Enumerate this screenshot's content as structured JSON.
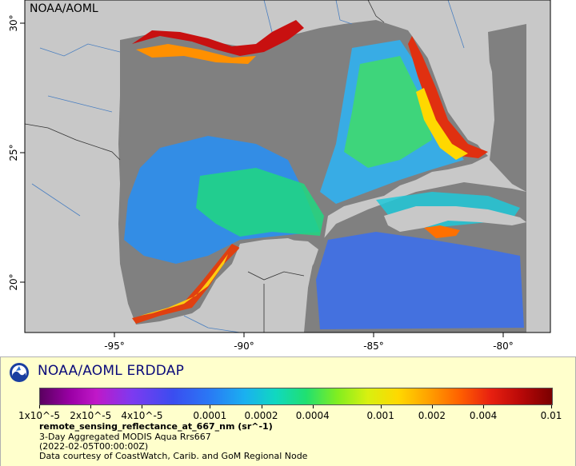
{
  "map": {
    "credit": "NOAA/AOML",
    "lon_ticks": [
      {
        "value": -95,
        "label": "-95°"
      },
      {
        "value": -90,
        "label": "-90°"
      },
      {
        "value": -85,
        "label": "-85°"
      },
      {
        "value": -80,
        "label": "-80°"
      }
    ],
    "lat_ticks": [
      {
        "value": 30,
        "label": "30°"
      },
      {
        "value": 25,
        "label": "25°"
      },
      {
        "value": 20,
        "label": "20°"
      }
    ],
    "colors": {
      "land": "#c8c8c8",
      "no_data": "#808080",
      "rivers": "#4a7fc0",
      "borders": "#333333"
    }
  },
  "legend": {
    "org_name": "NOAA/AOML ERDDAP",
    "colorbar_labels": [
      "1x10^-5",
      "2x10^-5",
      "4x10^-5",
      "0.0001",
      "0.0002",
      "0.0004",
      "0.001",
      "0.002",
      "0.004",
      "0.01"
    ],
    "variable": "remote_sensing_reflectance_at_667_nm (sr^-1)",
    "line1": "3-Day Aggregated MODIS Aqua Rrs667",
    "line2": "(2022-02-05T00:00:00Z)",
    "line3": "Data courtesy of CoastWatch, Carib. and GoM Regional Node",
    "scale": "log",
    "range": [
      1e-05,
      0.01
    ]
  }
}
